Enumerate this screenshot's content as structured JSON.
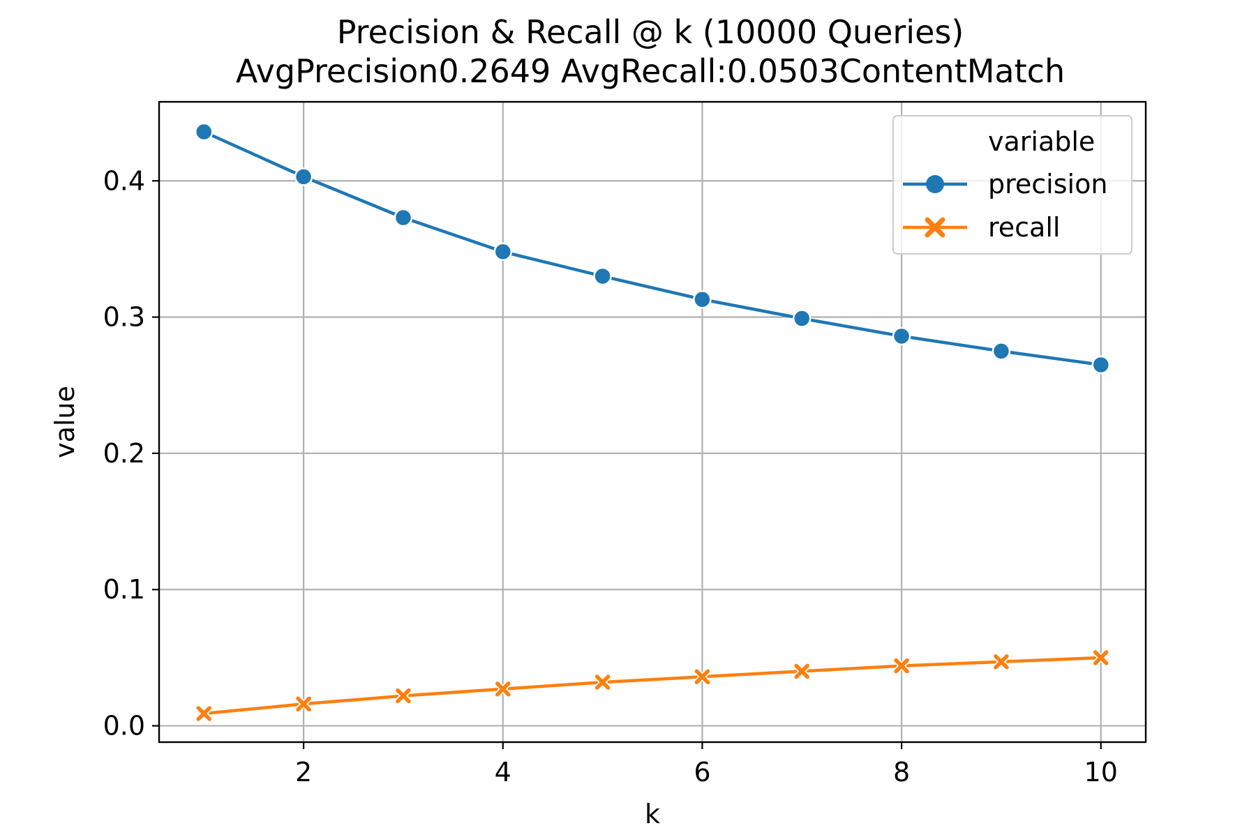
{
  "chart_data": {
    "type": "line",
    "title": "Precision & Recall @ k (10000 Queries)",
    "subtitle": "AvgPrecision0.2649 AvgRecall:0.0503ContentMatch",
    "xlabel": "k",
    "ylabel": "value",
    "x": [
      1,
      2,
      3,
      4,
      5,
      6,
      7,
      8,
      9,
      10
    ],
    "xlim": [
      0.55,
      10.45
    ],
    "ylim": [
      -0.012,
      0.458
    ],
    "xticks": [
      2,
      4,
      6,
      8,
      10
    ],
    "xtick_labels": [
      "2",
      "4",
      "6",
      "8",
      "10"
    ],
    "yticks": [
      0.0,
      0.1,
      0.2,
      0.3,
      0.4
    ],
    "ytick_labels": [
      "0.0",
      "0.1",
      "0.2",
      "0.3",
      "0.4"
    ],
    "grid": true,
    "legend": {
      "title": "variable",
      "placement": "top-right"
    },
    "series": [
      {
        "name": "precision",
        "color": "#1f77b4",
        "marker": "circle",
        "values": [
          0.436,
          0.403,
          0.373,
          0.348,
          0.33,
          0.313,
          0.299,
          0.286,
          0.275,
          0.265
        ]
      },
      {
        "name": "recall",
        "color": "#ff7f0e",
        "marker": "x",
        "values": [
          0.009,
          0.016,
          0.022,
          0.027,
          0.032,
          0.036,
          0.04,
          0.044,
          0.047,
          0.05
        ]
      }
    ]
  }
}
